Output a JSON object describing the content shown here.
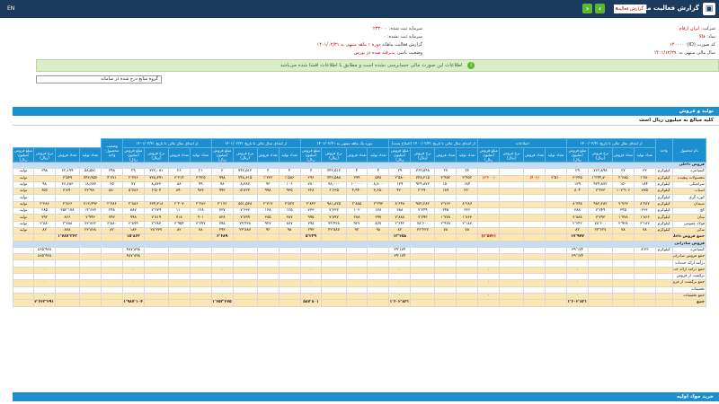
{
  "header": {
    "title": "گزارش فعالیت ماهانه",
    "select_value": "گزارش فعالیت",
    "logo": "▣",
    "lang": "EN"
  },
  "info": {
    "company_label": "شرکت:",
    "company_value": "ایران ارقام",
    "symbol_label": "نماد:",
    "symbol_value": "فالا",
    "code_label": "کد صورت (ID):",
    "code_value": "۱۴۰۰۰۰",
    "report_label": "گزارش فعالیت ماهانه",
    "report_value": "دوره ۱ ماهه منتهی به ۱۴۰۱/۰۲/۳۱",
    "period_label": "سال مالی منتهی به:",
    "period_value": "۱۴۰۱/۱۲/۲۹",
    "capital_label": "سرمایه ثبت شده:",
    "capital_value": "۲۳۳۰۰۰",
    "unreg_label": "سرمایه ثبت نشده:",
    "unreg_value": "۰",
    "status_label": "وضعیت ناشر:",
    "status_value": "پذیرفته شده در بورس"
  },
  "banner": "اطلاعات این صورت مالی حسابرسی نشده است و مطابق با اطلاعات افشا شده می‌باشد",
  "selector": "گروه منابع درج شده در سامانه",
  "sections": {
    "main": "تولید و فروش",
    "sub": "کلیه مبالغ به میلیون ریال است",
    "footer": "خرید مواد اولیه"
  },
  "table": {
    "group_headers": [
      "نام محصول",
      "واحد",
      "از ابتدای سال مالی تا تاریخ ۱۴۰۰/۰۲/۳۱",
      "اصلاحات",
      "از ابتدای سال مالی تا تاریخ ۱۴۰۰/۰۲/۳۱ (اصلاح شده)",
      "دوره یک ماهه منتهی به ۱۴۰۱/۰۲/۳۱",
      "از ابتدای سال مالی تا تاریخ ۱۴۰۱/۰۲/۳۱",
      "از ابتدای سال مالی تا تاریخ ۱۴۰۱/۰۲/۳۱",
      "وضعیت محصول-واحد"
    ],
    "sub_headers": [
      "تعداد تولید",
      "تعداد فروش",
      "نرخ فروش (ریال)",
      "مبلغ فروش (میلیون ریال)"
    ],
    "rows": [
      {
        "type": "grp",
        "cells": [
          "فروش داخلی"
        ]
      },
      {
        "type": "r0",
        "cells": [
          "کنسانتره",
          "کیلوگرم",
          "۳۳",
          "۲۷",
          "۷۶۲٫۸۹۸",
          "۲۹",
          "",
          "",
          "",
          "",
          "۳۳",
          "۲۷",
          "۷۶۲٫۸۹۸",
          "۲۹",
          "۴",
          "۴",
          "۷۴۲٫۵۱۲",
          "۳",
          "۴",
          "۴",
          "۷۴۲٫۵۱۲",
          "۳",
          "۲۱",
          "۲۶",
          "۷۲۳٫۰۸۱",
          "۲۹",
          "۳۹۸",
          "۵۸٫۵۷۱",
          "۶۲٫۱۹۹",
          "۳۹۸",
          "تولید"
        ]
      },
      {
        "type": "r1",
        "cells": [
          "محصولات پیچیده",
          "کیلوگرم",
          "۱٬۷۸۰",
          "۲٬۶۸۵",
          "۱٬۲۴۴٫۷۰۰",
          "۳٬۳۴۵",
          "۳٬۵۱۰",
          "(۴۰۶)",
          "",
          "(۳٬۲۰۰)",
          "۳٬۴۵۲",
          "۳٬۴۵۲",
          "۷۴۸٫۲۱۵",
          "۲٬۵۸۰",
          "۵۴۸",
          "۳۹۹",
          "۷۴۲٫۵۸۸",
          "۲۹۶",
          "۱٬۵۸۶",
          "۱٬۳۳۲",
          "۷۴۸٫۶۱۵",
          "۹۹۸",
          "۳٬۴۲۵",
          "۳٬۲۱۴",
          "۷۳۸٫۳۹۱",
          "۲٬۳۷۶",
          "۴٬۷۷۱",
          "۷۴۳٫۹۵۷",
          "۳٬۵۴۹",
          "",
          "تولید"
        ]
      },
      {
        "type": "r0",
        "cells": [
          "سرامیکی",
          "کیلوگرم",
          "۱۸۴",
          "۱۵۰",
          "۹۲۴٫۸۷۲",
          "۱۳۹",
          "",
          "",
          "",
          "",
          "۱۸۴",
          "۱۵۰",
          "۹۲۴٫۸۷۲",
          "۱۳۹",
          "۸٫۷۰۰",
          "۱۰٬۰۰۰",
          "۷۸٫۰۰۰",
          "۷۸۰",
          "۱۰۶",
          "۹۳",
          "۸٫۳۸۷",
          "۷۸",
          "۹۹",
          "۸۸",
          "۸٫۸۳۳",
          "۷۷",
          "۲۵",
          "۱۸٫۶۸۳",
          "۳۶٫۶۸۳",
          "۹۸",
          "تولید"
        ]
      },
      {
        "type": "r1",
        "cells": [
          "آسیاب",
          "کیلوگرم",
          "۸۷۵",
          "۱۰۷٬۹۰۶",
          "۷٬۴۷۳",
          "۸۰۴",
          "",
          "",
          "",
          "",
          "۲۲۰",
          "۱۸۹",
          "۲٬۲۹۰",
          "۴۲۰",
          "۳٫۶۵۰",
          "۴٫۹۴۰",
          "۶٬۶۳۵",
          "۳۲۸",
          "۹۳۵",
          "۹۹۸",
          "۵٬۸۲۳",
          "۹۹۳",
          "۹۸۳",
          "۸۹۰",
          "۶٬۵۰۳",
          "۵٬۷۸۶",
          "۸۸۰",
          "۷۳٬۹۸۰",
          "۷٬۸۹۰",
          "۶۵۷",
          "تولید"
        ]
      },
      {
        "type": "r0",
        "cells": [
          "کوره گری",
          "کیلوگرم",
          "",
          "",
          "",
          "",
          "",
          "",
          "",
          "",
          "",
          "",
          "",
          "",
          "",
          "",
          "",
          "",
          "",
          "",
          "",
          "",
          "",
          "",
          "",
          "",
          "",
          "",
          "",
          "",
          "تولید"
        ]
      },
      {
        "type": "r1",
        "cells": [
          "سیمان",
          "کیلوگرم",
          "۸٬۲۸۷",
          "۷٬۷۶۳",
          "۹۸۲٫۲۸۲",
          "۸٬۶۴۸",
          "",
          "",
          "",
          "",
          "۸٬۲۸۷",
          "۷٬۷۶۳",
          "۹۸۲٫۲۸۲",
          "۸٬۶۴۸",
          "۲٬۲۹۳",
          "۲٬۸۸۵",
          "۹۸۱٫۸۲۵",
          "۳٬۸۴۳",
          "۲٬۵۲۷",
          "۲٬۷۱۷",
          "۸۵۱٫۵۳۸",
          "۳٬۱۷۶",
          "۲٬۲۸۳",
          "۲٬۲۰۷",
          "۶۳۴٫۲۱۸",
          "۲٬۸۸۶",
          "۲٬۳۸۶",
          "۷۱۳٫۴۹۳",
          "۲٬۸۶۶",
          "۲٬۳۸۶",
          "تولید"
        ]
      },
      {
        "type": "r0",
        "cells": [
          "گچ",
          "کیلوگرم",
          "۳۳۶",
          "۳۴۵",
          "۷٬۲۴۹",
          "۳۸۸",
          "",
          "",
          "",
          "",
          "۳۳۶",
          "۳۴۵",
          "۷٬۲۴۹",
          "۳۸۸",
          "۱۳۸",
          "۱۰۲",
          "۷٬۳۳۳",
          "۷۳۳",
          "۱۲۵",
          "۱۳۸",
          "۷٬۶۳۷",
          "۷۳۷",
          "۱۲۸",
          "۱۱۰",
          "۷٬۳۷۹",
          "۸۸۷",
          "۳۴۸",
          "۱۴٬۶۳۷",
          "۳۵۲٬۱۷۸",
          "۲۸۵",
          "تولید"
        ]
      },
      {
        "type": "r1",
        "cells": [
          "تیتان",
          "کیلوگرم",
          "۱٬۸۶۳",
          "۱٬۷۷۸",
          "۷٬۷۹۳",
          "۷٬۸۸۸",
          "",
          "",
          "",
          "",
          "۱٬۸۶۳",
          "۱٬۷۷۸",
          "۷٬۷۹۳",
          "۷٬۸۸۸",
          "۳۹۷",
          "۲۸۸",
          "۷٬۸۹۷",
          "۹۹۵",
          "۳۸۷",
          "۳۸۵",
          "۷٬۸۹۹",
          "۸۳۸",
          "۹۰۱",
          "۷۱۸",
          "۷٬۸۱۹",
          "۹۹۸",
          "۷۹۲",
          "۷٬۹۹۳",
          "۸۶۶",
          "۷۹۲",
          "تولید"
        ]
      },
      {
        "type": "r0",
        "cells": [
          "فولاد عمومی",
          "کیلوگرم",
          "۳٬۱۸۳",
          "۲٬۹۳۸",
          "۷۸٬۶۰۰",
          "۲٬۶۴۲",
          "",
          "",
          "",
          "",
          "۳٬۱۸۳",
          "۲٬۹۳۸",
          "۷۸٬۶۰۰",
          "۲٬۶۴۲",
          "۸۷۷",
          "۹۲۷",
          "۷۹٬۴۳۸",
          "۷۹۸",
          "۸۷۷",
          "۹۲۷",
          "۷۹٬۴۳۸",
          "۷۹۸",
          "۳٬۷۹۷",
          "۳٬۹۵۴",
          "۷٬۳۸۳",
          "۳٬۸۹۹",
          "۳٬۸۸۰",
          "۷۳٬۸۲۲",
          "۲٬۷۸۸",
          "۳٬۸۸۰",
          "تولید"
        ]
      },
      {
        "type": "r1",
        "cells": [
          "سایر",
          "کیلوگرم",
          "۷۸",
          "۷۸",
          "۲۳٬۲۲۷",
          "۸۲",
          "",
          "",
          "",
          "",
          "۷۸",
          "۷۸",
          "۲۳٬۲۲۷",
          "۸۲",
          "۹۸",
          "۹۲",
          "۲۳٬۸۸۷",
          "۲۹۳",
          "۹۸",
          "۹۲",
          "۲۳٬۸۸۷",
          "۲۹۳",
          "۷۸",
          "۸۲",
          "۲۸٬۳۳۷",
          "۱۸۳",
          "۸۲",
          "۲۳٬۸۲۸",
          "۸۷۸",
          "۸۲",
          "تولید"
        ]
      },
      {
        "type": "total",
        "cells": [
          "جمع فروش داخلی",
          "",
          "",
          "",
          "",
          "۱۷٬۹۷۷",
          "",
          "",
          "",
          "(۲٬۵۷۲)",
          "",
          "",
          "",
          "۱۳٬۲۵۸",
          "",
          "",
          "",
          "۵٬۲۳۹",
          "",
          "",
          "",
          "۶٬۶۸۹",
          "",
          "",
          "",
          "۱۵٬۸۶۳",
          "",
          "",
          "۱٬۷۸۷٬۳۶۳",
          "",
          ""
        ]
      },
      {
        "type": "grp",
        "cells": [
          "فروش صادراتی"
        ]
      },
      {
        "type": "r0",
        "cells": [
          "کنسانتره",
          "کیلوگرم",
          "۸٬۳۳",
          "",
          "",
          "۳۹٬۱۷۴",
          "",
          "",
          "",
          "",
          "",
          "",
          "",
          "۳۹٬۱۷۴",
          "",
          "",
          "",
          "",
          "",
          "",
          "",
          "",
          "",
          "",
          "",
          "۴۸۷٬۸۹۸",
          "",
          "",
          "",
          "۸۶۵٬۹۲۸",
          ""
        ]
      },
      {
        "type": "r1",
        "cells": [
          "جمع فروش صادراتی",
          "",
          "",
          "",
          "",
          "۳۹٬۱۷۴",
          "",
          "",
          "",
          "",
          "",
          "",
          "",
          "۳۹٬۱۷۴",
          "",
          "",
          "",
          "",
          "",
          "",
          "",
          "",
          "",
          "",
          "",
          "۴۸۷٬۸۹۸",
          "",
          "",
          "",
          "۸۶۵٬۹۲۸",
          ""
        ]
      },
      {
        "type": "r0",
        "cells": [
          "درآمد ارائه خدمات",
          "",
          "",
          "",
          "",
          "",
          "",
          "",
          "",
          "",
          "",
          "",
          "",
          "",
          "",
          "",
          "",
          "",
          "",
          "",
          "",
          "",
          "",
          "",
          "",
          "",
          "",
          "",
          "",
          "",
          ""
        ]
      },
      {
        "type": "r1",
        "cells": [
          "جمع درآمد ارائه خدمات",
          "",
          "",
          "",
          "",
          "۰",
          "",
          "",
          "",
          "۰",
          "",
          "",
          "",
          "۰",
          "",
          "",
          "",
          "۰",
          "",
          "",
          "",
          "۰",
          "",
          "",
          "",
          "۰",
          "",
          "",
          "",
          "۰",
          ""
        ]
      },
      {
        "type": "r0",
        "cells": [
          "برگشت از فروش",
          "",
          "",
          "",
          "",
          "",
          "",
          "",
          "",
          "",
          "",
          "",
          "",
          "",
          "",
          "",
          "",
          "",
          "",
          "",
          "",
          "",
          "",
          "",
          "",
          "",
          "",
          "",
          "",
          "",
          ""
        ]
      },
      {
        "type": "r1",
        "cells": [
          "جمع برگشت از فروش",
          "",
          "",
          "",
          "",
          "۰",
          "",
          "",
          "",
          "۰",
          "",
          "",
          "",
          "۰",
          "",
          "",
          "",
          "۰",
          "",
          "",
          "",
          "۰",
          "",
          "",
          "",
          "۰",
          "",
          "",
          "",
          "۰",
          ""
        ]
      },
      {
        "type": "r0",
        "cells": [
          "تخفیفات",
          "",
          "",
          "",
          "",
          "",
          "",
          "",
          "",
          "",
          "",
          "",
          "",
          "",
          "",
          "",
          "",
          "",
          "",
          "",
          "",
          "",
          "",
          "",
          "",
          "",
          "",
          "",
          "",
          "",
          ""
        ]
      },
      {
        "type": "r1",
        "cells": [
          "جمع تخفیفات",
          "",
          "",
          "",
          "",
          "۰",
          "",
          "",
          "",
          "۰",
          "",
          "",
          "",
          "۰",
          "",
          "",
          "",
          "۰",
          "",
          "",
          "",
          "۰",
          "",
          "",
          "",
          "۰",
          "",
          "",
          "",
          "۰",
          ""
        ]
      },
      {
        "type": "total",
        "cells": [
          "جمع",
          "",
          "",
          "",
          "",
          "۱٬۶۰۲٬۸۳۱",
          "",
          "",
          "",
          "",
          "",
          "",
          "",
          "۱٬۶۰۲٬۸۳۱",
          "",
          "",
          "",
          "۵۸۷٬۸۰۱",
          "",
          "",
          "",
          "۱٬۶۵۳٬۲۷۵",
          "",
          "",
          "",
          "۱٬۹۸۷٬۱۰۴",
          "",
          "",
          "",
          "۲٬۶۲۳٬۲۹۱",
          ""
        ]
      }
    ]
  }
}
